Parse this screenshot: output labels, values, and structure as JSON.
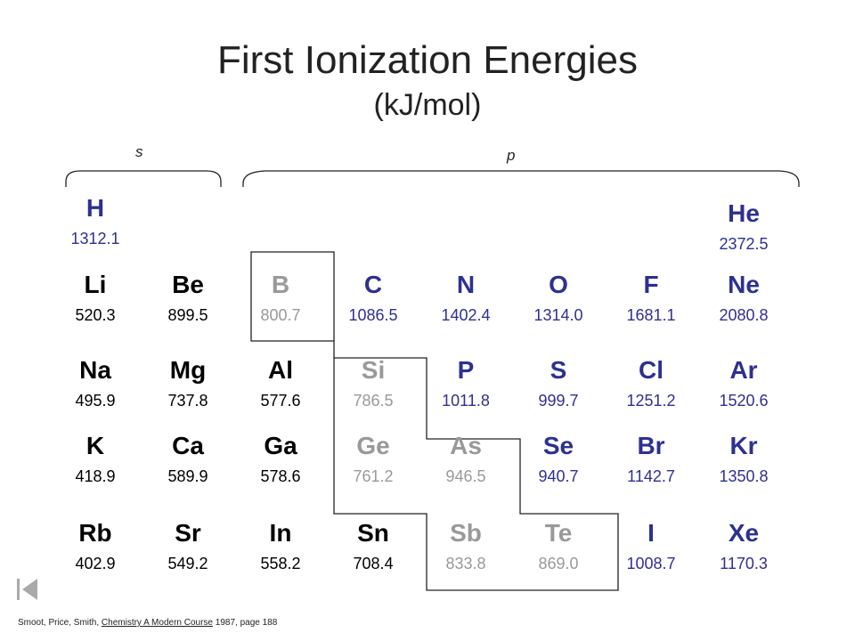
{
  "title": "First Ionization Energies",
  "subtitle": "(kJ/mol)",
  "blocks": {
    "s_label": "s",
    "p_label": "p"
  },
  "colors": {
    "metal": "#000000",
    "metalloid": "#999999",
    "nonmetal": "#2e3092"
  },
  "elements": [
    {
      "symbol": "H",
      "value": "1312.1",
      "row": 0,
      "col": 0,
      "type": "nonmetal"
    },
    {
      "symbol": "He",
      "value": "2372.5",
      "row": 0,
      "col": 7,
      "type": "nonmetal"
    },
    {
      "symbol": "Li",
      "value": "520.3",
      "row": 1,
      "col": 0,
      "type": "metal"
    },
    {
      "symbol": "Be",
      "value": "899.5",
      "row": 1,
      "col": 1,
      "type": "metal"
    },
    {
      "symbol": "B",
      "value": "800.7",
      "row": 1,
      "col": 2,
      "type": "metalloid"
    },
    {
      "symbol": "C",
      "value": "1086.5",
      "row": 1,
      "col": 3,
      "type": "nonmetal"
    },
    {
      "symbol": "N",
      "value": "1402.4",
      "row": 1,
      "col": 4,
      "type": "nonmetal"
    },
    {
      "symbol": "O",
      "value": "1314.0",
      "row": 1,
      "col": 5,
      "type": "nonmetal"
    },
    {
      "symbol": "F",
      "value": "1681.1",
      "row": 1,
      "col": 6,
      "type": "nonmetal"
    },
    {
      "symbol": "Ne",
      "value": "2080.8",
      "row": 1,
      "col": 7,
      "type": "nonmetal"
    },
    {
      "symbol": "Na",
      "value": "495.9",
      "row": 2,
      "col": 0,
      "type": "metal"
    },
    {
      "symbol": "Mg",
      "value": "737.8",
      "row": 2,
      "col": 1,
      "type": "metal"
    },
    {
      "symbol": "Al",
      "value": "577.6",
      "row": 2,
      "col": 2,
      "type": "metal"
    },
    {
      "symbol": "Si",
      "value": "786.5",
      "row": 2,
      "col": 3,
      "type": "metalloid"
    },
    {
      "symbol": "P",
      "value": "1011.8",
      "row": 2,
      "col": 4,
      "type": "nonmetal"
    },
    {
      "symbol": "S",
      "value": "999.7",
      "row": 2,
      "col": 5,
      "type": "nonmetal"
    },
    {
      "symbol": "Cl",
      "value": "1251.2",
      "row": 2,
      "col": 6,
      "type": "nonmetal"
    },
    {
      "symbol": "Ar",
      "value": "1520.6",
      "row": 2,
      "col": 7,
      "type": "nonmetal"
    },
    {
      "symbol": "K",
      "value": "418.9",
      "row": 3,
      "col": 0,
      "type": "metal"
    },
    {
      "symbol": "Ca",
      "value": "589.9",
      "row": 3,
      "col": 1,
      "type": "metal"
    },
    {
      "symbol": "Ga",
      "value": "578.6",
      "row": 3,
      "col": 2,
      "type": "metal"
    },
    {
      "symbol": "Ge",
      "value": "761.2",
      "row": 3,
      "col": 3,
      "type": "metalloid"
    },
    {
      "symbol": "As",
      "value": "946.5",
      "row": 3,
      "col": 4,
      "type": "metalloid"
    },
    {
      "symbol": "Se",
      "value": "940.7",
      "row": 3,
      "col": 5,
      "type": "nonmetal"
    },
    {
      "symbol": "Br",
      "value": "1142.7",
      "row": 3,
      "col": 6,
      "type": "nonmetal"
    },
    {
      "symbol": "Kr",
      "value": "1350.8",
      "row": 3,
      "col": 7,
      "type": "nonmetal"
    },
    {
      "symbol": "Rb",
      "value": "402.9",
      "row": 4,
      "col": 0,
      "type": "metal"
    },
    {
      "symbol": "Sr",
      "value": "549.2",
      "row": 4,
      "col": 1,
      "type": "metal"
    },
    {
      "symbol": "In",
      "value": "558.2",
      "row": 4,
      "col": 2,
      "type": "metal"
    },
    {
      "symbol": "Sn",
      "value": "708.4",
      "row": 4,
      "col": 3,
      "type": "metal"
    },
    {
      "symbol": "Sb",
      "value": "833.8",
      "row": 4,
      "col": 4,
      "type": "metalloid"
    },
    {
      "symbol": "Te",
      "value": "869.0",
      "row": 4,
      "col": 5,
      "type": "metalloid"
    },
    {
      "symbol": "I",
      "value": "1008.7",
      "row": 4,
      "col": 6,
      "type": "nonmetal"
    },
    {
      "symbol": "Xe",
      "value": "1170.3",
      "row": 4,
      "col": 7,
      "type": "nonmetal"
    }
  ],
  "footer": {
    "authors": "Smoot, Price, Smith, ",
    "book": "Chemistry A Modern Course",
    "rest": " 1987, page 188"
  },
  "nav": {
    "icon": "first-slide-icon"
  }
}
